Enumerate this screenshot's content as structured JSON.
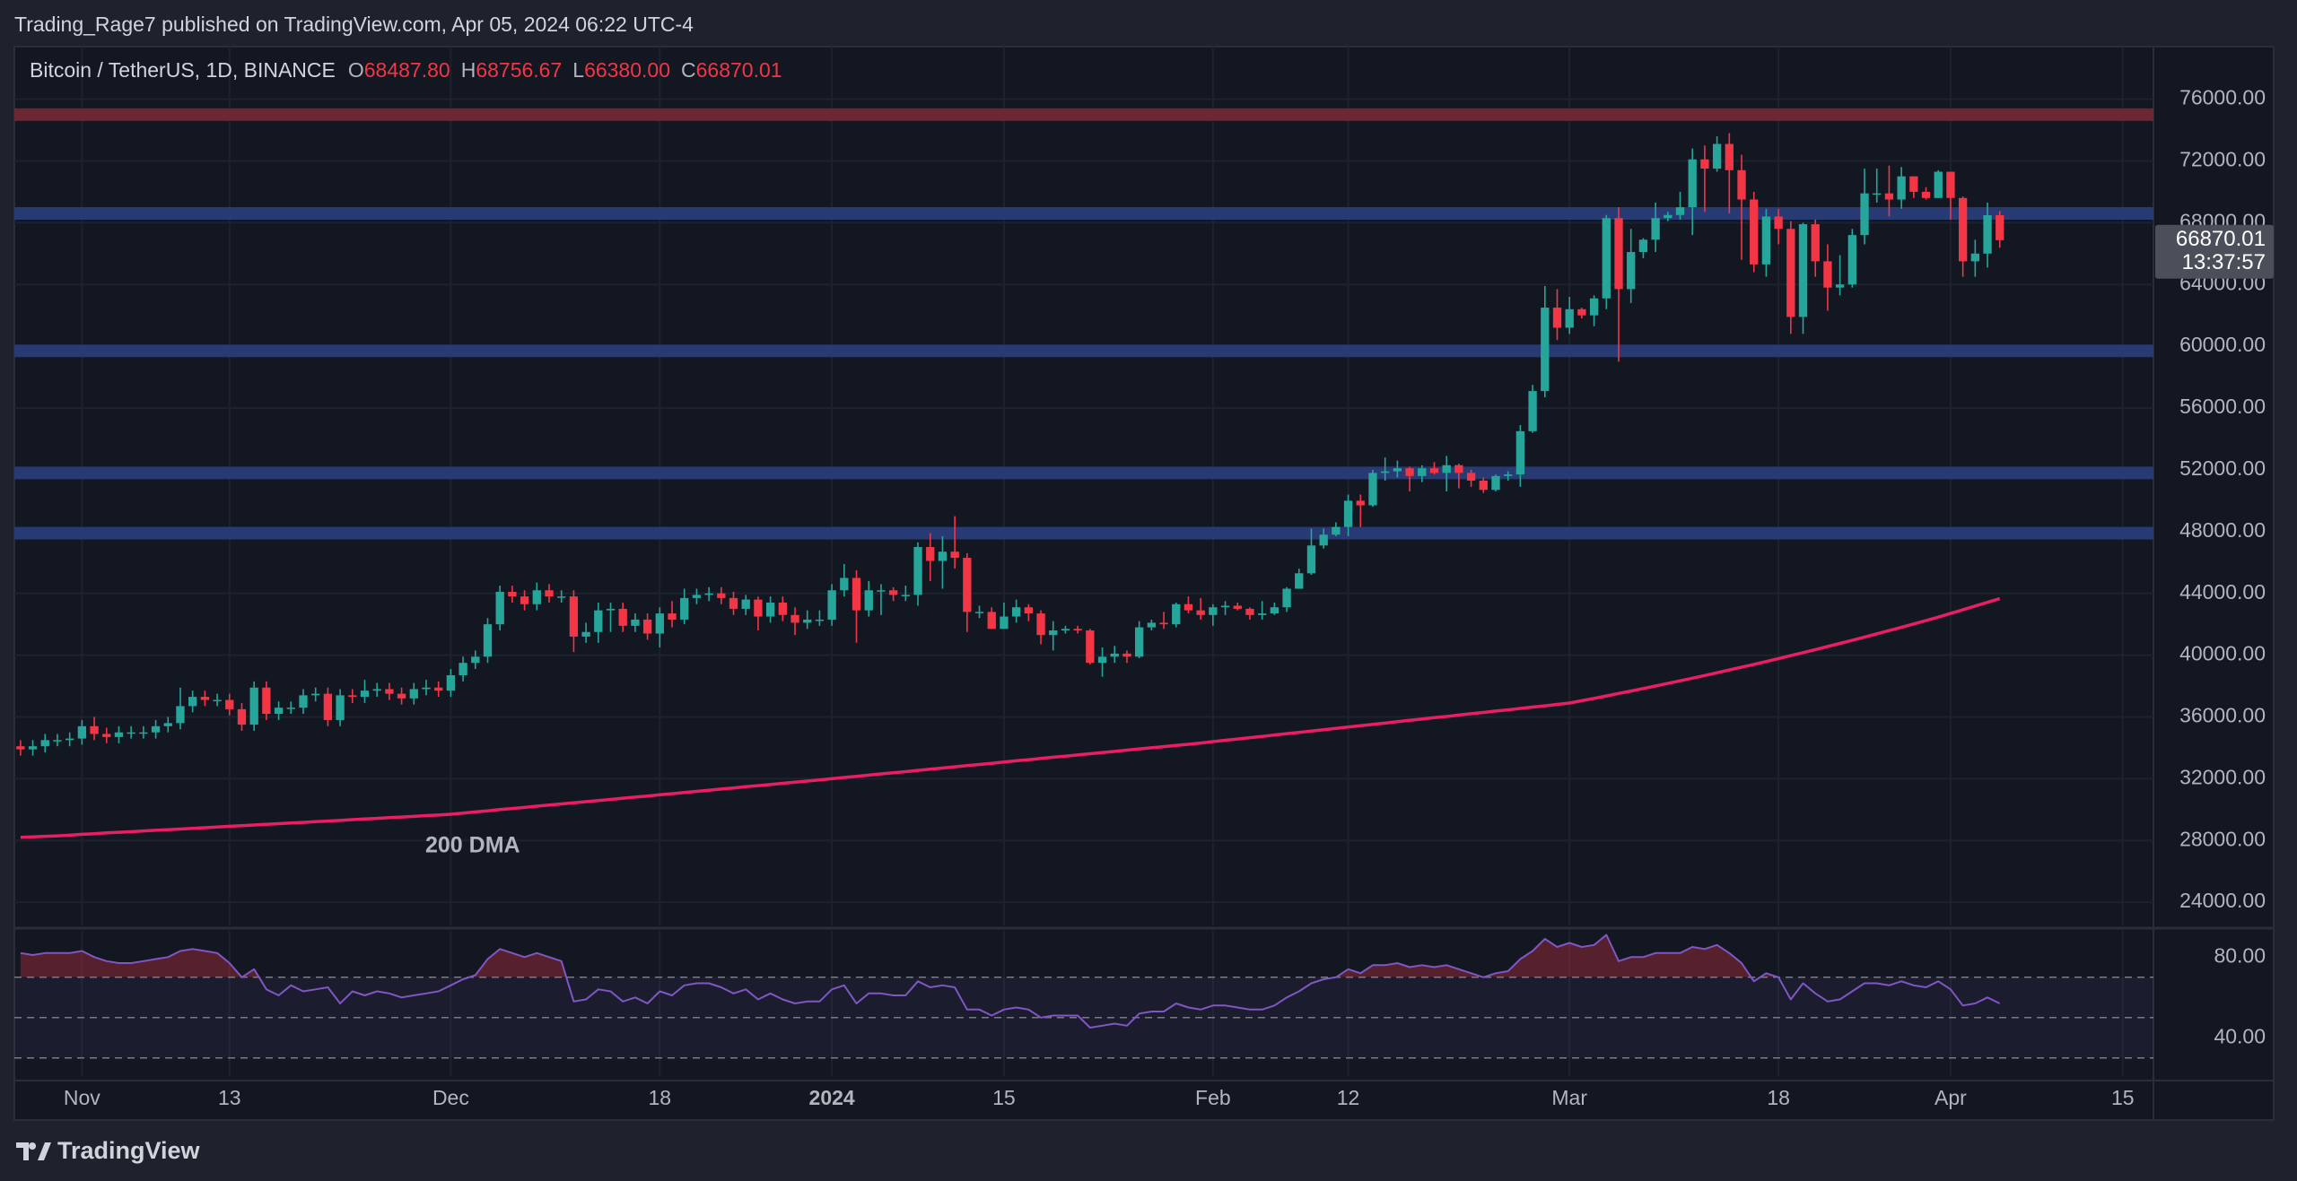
{
  "header": {
    "publisher": "Trading_Rage7 published on TradingView.com, Apr 05, 2024 06:22 UTC-4",
    "symbol": "Bitcoin / TetherUS, 1D, BINANCE",
    "ohlc": [
      {
        "key": "O",
        "value": "68487.80"
      },
      {
        "key": "H",
        "value": "68756.67"
      },
      {
        "key": "L",
        "value": "66380.00"
      },
      {
        "key": "C",
        "value": "66870.01"
      }
    ]
  },
  "footer": {
    "brand": "TradingView"
  },
  "chart_data": {
    "type": "candlestick",
    "grid": true,
    "up_color": "#26a69a",
    "down_color": "#f23645",
    "countdown": "13:37:57",
    "categories": [
      null,
      null,
      null,
      null,
      null,
      "Nov",
      null,
      null,
      null,
      null,
      null,
      null,
      null,
      null,
      null,
      null,
      null,
      "13",
      null,
      null,
      null,
      null,
      null,
      null,
      null,
      null,
      null,
      null,
      null,
      null,
      null,
      null,
      null,
      null,
      null,
      "Dec",
      null,
      null,
      null,
      null,
      null,
      null,
      null,
      null,
      null,
      null,
      null,
      null,
      null,
      null,
      null,
      null,
      "18",
      null,
      null,
      null,
      null,
      null,
      null,
      null,
      null,
      null,
      null,
      null,
      null,
      null,
      "2024",
      null,
      null,
      null,
      null,
      null,
      null,
      null,
      null,
      null,
      null,
      null,
      null,
      null,
      "15",
      null,
      null,
      null,
      null,
      null,
      null,
      null,
      null,
      null,
      null,
      null,
      null,
      null,
      null,
      null,
      null,
      "Feb",
      null,
      null,
      null,
      null,
      null,
      null,
      null,
      null,
      null,
      null,
      "12",
      null,
      null,
      null,
      null,
      null,
      null,
      null,
      null,
      null,
      null,
      null,
      null,
      null,
      null,
      null,
      null,
      null,
      "Mar",
      null,
      null,
      null,
      null,
      null,
      null,
      null,
      null,
      null,
      null,
      null,
      null,
      null,
      null,
      null,
      null,
      "18",
      null,
      null,
      null,
      null,
      null,
      null,
      null,
      null,
      null,
      null,
      null,
      null,
      null,
      "Apr",
      null,
      null,
      null,
      null,
      null,
      null,
      null,
      null,
      null,
      null,
      null,
      null,
      null,
      "15",
      null,
      null
    ],
    "open": [
      34100,
      33900,
      34100,
      34500,
      34500,
      34600,
      35400,
      34900,
      34700,
      35000,
      35000,
      35000,
      35400,
      35600,
      36700,
      37300,
      37100,
      37100,
      36500,
      35500,
      37900,
      36200,
      36600,
      36600,
      37400,
      37500,
      35800,
      37400,
      37300,
      37700,
      37800,
      37500,
      37200,
      37800,
      37900,
      37700,
      38700,
      39500,
      39900,
      42000,
      44100,
      43800,
      43300,
      44200,
      43800,
      43800,
      41200,
      41500,
      42900,
      43000,
      41900,
      42300,
      41400,
      42700,
      42300,
      43700,
      43900,
      44000,
      43700,
      43000,
      43600,
      42500,
      43400,
      42600,
      42100,
      42300,
      42300,
      44200,
      45000,
      42900,
      44200,
      44200,
      43900,
      43900,
      47000,
      46100,
      46700,
      46300,
      42800,
      42800,
      41700,
      42500,
      43100,
      42700,
      41300,
      41600,
      41700,
      41600,
      39500,
      39900,
      40100,
      39900,
      41800,
      42100,
      42000,
      43300,
      42900,
      42600,
      43100,
      43200,
      43000,
      42600,
      42700,
      43100,
      44300,
      45300,
      47100,
      47800,
      48300,
      50000,
      49700,
      51800,
      51900,
      52100,
      51600,
      52100,
      51800,
      52300,
      51800,
      51300,
      50700,
      51600,
      51700,
      54500,
      57100,
      62500,
      61200,
      62400,
      62000,
      63100,
      68300,
      63700,
      66100,
      66900,
      68300,
      68500,
      69000,
      72100,
      71500,
      73100,
      71400,
      69500,
      65300,
      68400,
      67600,
      61900,
      67900,
      65500,
      63800,
      64000,
      67200,
      69900,
      69900,
      69500,
      71000,
      70000,
      69600,
      71300,
      69600,
      65500,
      66000,
      68487.8,
      null,
      null,
      null,
      null,
      null,
      null,
      null,
      null,
      null,
      null,
      null,
      null
    ],
    "high": [
      34500,
      34500,
      34900,
      34900,
      35000,
      35800,
      36000,
      35300,
      35400,
      35400,
      35400,
      35800,
      36000,
      37900,
      37700,
      37700,
      37500,
      37500,
      36900,
      38300,
      38300,
      37000,
      37000,
      37800,
      37900,
      37900,
      37800,
      37800,
      38400,
      38200,
      38200,
      37900,
      38200,
      38400,
      38300,
      39100,
      39900,
      40300,
      42400,
      44500,
      44500,
      44200,
      44700,
      44600,
      44200,
      44200,
      42100,
      43400,
      43400,
      43400,
      42700,
      42700,
      43100,
      43500,
      44300,
      44300,
      44400,
      44400,
      44100,
      43900,
      43800,
      43800,
      43800,
      43100,
      42900,
      42900,
      44600,
      45900,
      45500,
      44800,
      44600,
      44400,
      44500,
      47300,
      47900,
      47700,
      49000,
      46600,
      43200,
      43100,
      43400,
      43600,
      43300,
      42900,
      42200,
      41900,
      41900,
      41700,
      40500,
      40600,
      40300,
      42200,
      42300,
      42800,
      43400,
      43800,
      43700,
      43300,
      43500,
      43400,
      43100,
      43500,
      43400,
      44400,
      45600,
      48200,
      48200,
      48600,
      50400,
      50400,
      52000,
      52800,
      52600,
      52200,
      52300,
      52500,
      52900,
      52400,
      52000,
      51500,
      51700,
      51900,
      54900,
      57500,
      63900,
      63700,
      63200,
      62500,
      63300,
      68500,
      69000,
      67600,
      67000,
      69300,
      68700,
      70000,
      72800,
      73000,
      73600,
      73800,
      72400,
      70000,
      68900,
      68900,
      68100,
      68000,
      68200,
      66600,
      65900,
      67600,
      71500,
      71500,
      71700,
      71600,
      71000,
      70300,
      71400,
      71300,
      69700,
      66900,
      69300,
      68756.67,
      null,
      null,
      null,
      null,
      null,
      null,
      null,
      null,
      null,
      null,
      null,
      null
    ],
    "low": [
      33500,
      33500,
      33700,
      34100,
      34100,
      34200,
      34500,
      34300,
      34300,
      34600,
      34600,
      34600,
      35000,
      35200,
      36300,
      36700,
      36700,
      36100,
      35100,
      35100,
      35800,
      35800,
      36200,
      36200,
      37000,
      35400,
      35400,
      36900,
      36900,
      37300,
      37100,
      36800,
      36800,
      37400,
      37300,
      37300,
      38300,
      39100,
      39500,
      41600,
      43400,
      42900,
      42900,
      43400,
      43400,
      40200,
      40800,
      40800,
      41500,
      41500,
      41500,
      41000,
      40500,
      41800,
      42000,
      43300,
      43500,
      43300,
      42600,
      42600,
      41600,
      42100,
      42200,
      41300,
      41700,
      41900,
      41900,
      43800,
      40800,
      42500,
      42600,
      43500,
      43500,
      43200,
      44800,
      44300,
      45600,
      41500,
      42400,
      41700,
      41700,
      42100,
      42200,
      40700,
      40300,
      41400,
      41400,
      39400,
      38600,
      39500,
      39500,
      39800,
      41600,
      41700,
      41800,
      42700,
      42300,
      41900,
      42600,
      42900,
      42300,
      42300,
      42600,
      42800,
      44300,
      45200,
      46900,
      47700,
      47700,
      48300,
      49600,
      51300,
      51500,
      50600,
      51200,
      51700,
      50600,
      50800,
      50900,
      50500,
      50600,
      51300,
      50900,
      54400,
      56700,
      60400,
      60800,
      61800,
      61300,
      62400,
      59000,
      62800,
      65700,
      66100,
      68100,
      68200,
      67200,
      68700,
      71300,
      68600,
      65600,
      64800,
      64500,
      66600,
      60800,
      60800,
      64500,
      62300,
      63300,
      63800,
      66600,
      69300,
      68400,
      68900,
      69600,
      69500,
      69600,
      68200,
      64500,
      64500,
      65100,
      66380,
      null,
      null,
      null,
      null,
      null,
      null,
      null,
      null,
      null,
      null,
      null,
      null
    ],
    "close": [
      33900,
      34100,
      34500,
      34500,
      34600,
      35400,
      34900,
      34700,
      35000,
      35000,
      35000,
      35400,
      35600,
      36700,
      37300,
      37100,
      37100,
      36500,
      35500,
      37900,
      36200,
      36600,
      36600,
      37400,
      37500,
      35800,
      37400,
      37300,
      37700,
      37800,
      37500,
      37200,
      37800,
      37900,
      37700,
      38700,
      39500,
      39900,
      42000,
      44100,
      43800,
      43300,
      44200,
      43800,
      43800,
      41200,
      41500,
      42900,
      43000,
      41900,
      42300,
      41400,
      42700,
      42300,
      43700,
      43900,
      44000,
      43700,
      43000,
      43600,
      42500,
      43400,
      42600,
      42100,
      42300,
      42300,
      44200,
      45000,
      42900,
      44200,
      44200,
      43900,
      43900,
      47000,
      46100,
      46700,
      46300,
      42800,
      42800,
      41700,
      42500,
      43100,
      42700,
      41300,
      41600,
      41700,
      41600,
      39500,
      39900,
      40100,
      39900,
      41800,
      42100,
      42000,
      43300,
      42900,
      42600,
      43100,
      43200,
      43000,
      42600,
      42700,
      43100,
      44300,
      45300,
      47100,
      47800,
      48300,
      50000,
      49700,
      51800,
      51900,
      52100,
      51600,
      52100,
      51800,
      52300,
      51800,
      51300,
      50700,
      51600,
      51700,
      54500,
      57100,
      62500,
      61200,
      62400,
      62000,
      63100,
      68300,
      63700,
      66100,
      66900,
      68300,
      68500,
      69000,
      72100,
      71500,
      73100,
      71400,
      69500,
      65300,
      68400,
      67600,
      61900,
      67900,
      65500,
      63800,
      64000,
      67200,
      69900,
      69900,
      69500,
      71000,
      70000,
      69600,
      71300,
      69600,
      65500,
      66000,
      68487.8,
      66870.01,
      null,
      null,
      null,
      null,
      null,
      null,
      null,
      null,
      null,
      null,
      null,
      null
    ],
    "series": [
      {
        "name": "200 DMA",
        "color": "#e91e63",
        "values": [
          28200,
          28230,
          28270,
          28300,
          28340,
          28400,
          28440,
          28490,
          28530,
          28570,
          28620,
          28660,
          28700,
          28740,
          28790,
          28830,
          28870,
          28920,
          28960,
          29000,
          29050,
          29090,
          29130,
          29170,
          29220,
          29260,
          29300,
          29350,
          29390,
          29430,
          29480,
          29520,
          29560,
          29610,
          29650,
          29700,
          29770,
          29850,
          29920,
          30000,
          30070,
          30140,
          30220,
          30290,
          30370,
          30440,
          30510,
          30590,
          30660,
          30740,
          30810,
          30880,
          30960,
          31030,
          31110,
          31180,
          31250,
          31330,
          31400,
          31480,
          31550,
          31620,
          31700,
          31770,
          31850,
          31920,
          32000,
          32080,
          32150,
          32230,
          32310,
          32390,
          32460,
          32540,
          32620,
          32690,
          32770,
          32850,
          32920,
          33000,
          33080,
          33160,
          33230,
          33310,
          33390,
          33460,
          33540,
          33620,
          33690,
          33770,
          33850,
          33930,
          34000,
          34080,
          34160,
          34230,
          34310,
          34400,
          34490,
          34570,
          34660,
          34740,
          34830,
          34920,
          35000,
          35090,
          35170,
          35260,
          35350,
          35430,
          35520,
          35600,
          35690,
          35780,
          35860,
          35950,
          36030,
          36120,
          36210,
          36290,
          36380,
          36460,
          36550,
          36640,
          36720,
          36810,
          36900,
          37050,
          37200,
          37360,
          37520,
          37680,
          37840,
          38000,
          38170,
          38340,
          38510,
          38680,
          38860,
          39040,
          39220,
          39400,
          39590,
          39780,
          39970,
          40160,
          40360,
          40560,
          40760,
          40960,
          41170,
          41380,
          41590,
          41800,
          42020,
          42240,
          42460,
          42700,
          42940,
          43180,
          43420,
          43660,
          null,
          null,
          null,
          null,
          null,
          null,
          null,
          null,
          null,
          null,
          null,
          null
        ]
      },
      {
        "color": "#7e57c2",
        "axis": "y2",
        "values": [
          82,
          81,
          82,
          82,
          82,
          83,
          80,
          78,
          77,
          77,
          78,
          79,
          80,
          83,
          84,
          83,
          82,
          77,
          70,
          74,
          64,
          61,
          66,
          63,
          64,
          65,
          57,
          63,
          61,
          63,
          62,
          60,
          61,
          62,
          63,
          66,
          69,
          71,
          79,
          84,
          82,
          80,
          82,
          80,
          78,
          58,
          59,
          64,
          63,
          58,
          60,
          57,
          63,
          61,
          66,
          67,
          67,
          65,
          62,
          64,
          59,
          62,
          59,
          57,
          58,
          58,
          64,
          66,
          57,
          62,
          62,
          61,
          61,
          68,
          65,
          66,
          65,
          54,
          54,
          51,
          54,
          55,
          54,
          50,
          51,
          51,
          51,
          45,
          46,
          47,
          46,
          52,
          53,
          53,
          57,
          55,
          54,
          56,
          56,
          55,
          54,
          54,
          56,
          60,
          63,
          67,
          69,
          70,
          74,
          72,
          76,
          76,
          77,
          75,
          76,
          75,
          76,
          74,
          72,
          70,
          72,
          73,
          79,
          83,
          89,
          85,
          87,
          85,
          86,
          91,
          78,
          80,
          80,
          82,
          82,
          82,
          85,
          84,
          86,
          82,
          77,
          68,
          72,
          70,
          59,
          67,
          62,
          58,
          59,
          63,
          67,
          67,
          66,
          68,
          66,
          65,
          68,
          64,
          56,
          57,
          60,
          57,
          null,
          null,
          null,
          null,
          null,
          null,
          null,
          null,
          null,
          null,
          null,
          null
        ]
      }
    ],
    "levels": [
      {
        "value": 75000,
        "color": "#6b2733"
      },
      {
        "value": 68600,
        "color": "#283a73"
      },
      {
        "value": 59700,
        "color": "#283a73"
      },
      {
        "value": 51800,
        "color": "#283a73"
      },
      {
        "value": 47900,
        "color": "#283a73"
      }
    ],
    "ylim": [
      22500,
      79400
    ],
    "yticks": [
      {
        "value": 24000,
        "label": "24000.00"
      },
      {
        "value": 28000,
        "label": "28000.00"
      },
      {
        "value": 32000,
        "label": "32000.00"
      },
      {
        "value": 36000,
        "label": "36000.00"
      },
      {
        "value": 40000,
        "label": "40000.00"
      },
      {
        "value": 44000,
        "label": "44000.00"
      },
      {
        "value": 48000,
        "label": "48000.00"
      },
      {
        "value": 52000,
        "label": "52000.00"
      },
      {
        "value": 56000,
        "label": "56000.00"
      },
      {
        "value": 60000,
        "label": "60000.00"
      },
      {
        "value": 64000,
        "label": "64000.00"
      },
      {
        "value": 68000,
        "label": "68000.00"
      },
      {
        "value": 72000,
        "label": "72000.00"
      },
      {
        "value": 76000,
        "label": "76000.00"
      }
    ],
    "y2lim": [
      21,
      93
    ],
    "y2ticks": [
      {
        "value": 80,
        "label": "80.00"
      },
      {
        "value": 40,
        "label": "40.00"
      }
    ],
    "y2_guides": [
      70,
      50,
      30
    ]
  }
}
